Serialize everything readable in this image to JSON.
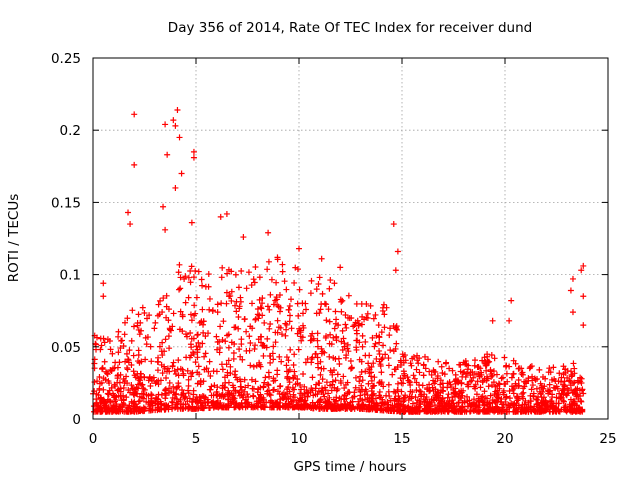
{
  "chart_data": {
    "type": "scatter",
    "title": "Day 356 of 2014, Rate Of TEC Index for receiver dund",
    "xlabel": "GPS time / hours",
    "ylabel": "ROTI / TECUs",
    "xlim": [
      0,
      25
    ],
    "ylim": [
      0,
      0.25
    ],
    "xticks": [
      0,
      5,
      10,
      15,
      20,
      25
    ],
    "xtick_labels": [
      "0",
      "5",
      "10",
      "15",
      "20",
      "25"
    ],
    "yticks": [
      0,
      0.05,
      0.1,
      0.15,
      0.2,
      0.25
    ],
    "ytick_labels": [
      "0",
      "0.05",
      "0.1",
      "0.15",
      "0.2",
      "0.25"
    ],
    "grid": true,
    "marker": "+",
    "marker_color": "#ff0000",
    "series": [
      {
        "name": "ROTI",
        "notable_points": [
          {
            "x": 0.5,
            "y": 0.094
          },
          {
            "x": 0.5,
            "y": 0.085
          },
          {
            "x": 1.7,
            "y": 0.143
          },
          {
            "x": 1.8,
            "y": 0.135
          },
          {
            "x": 2.0,
            "y": 0.211
          },
          {
            "x": 2.0,
            "y": 0.176
          },
          {
            "x": 3.5,
            "y": 0.204
          },
          {
            "x": 3.6,
            "y": 0.183
          },
          {
            "x": 3.4,
            "y": 0.147
          },
          {
            "x": 3.5,
            "y": 0.131
          },
          {
            "x": 3.9,
            "y": 0.207
          },
          {
            "x": 4.0,
            "y": 0.203
          },
          {
            "x": 4.1,
            "y": 0.214
          },
          {
            "x": 4.2,
            "y": 0.195
          },
          {
            "x": 4.3,
            "y": 0.17
          },
          {
            "x": 4.0,
            "y": 0.16
          },
          {
            "x": 4.9,
            "y": 0.185
          },
          {
            "x": 4.9,
            "y": 0.181
          },
          {
            "x": 4.8,
            "y": 0.136
          },
          {
            "x": 6.2,
            "y": 0.14
          },
          {
            "x": 6.5,
            "y": 0.142
          },
          {
            "x": 7.3,
            "y": 0.126
          },
          {
            "x": 8.5,
            "y": 0.129
          },
          {
            "x": 10.0,
            "y": 0.118
          },
          {
            "x": 11.1,
            "y": 0.111
          },
          {
            "x": 12.0,
            "y": 0.105
          },
          {
            "x": 14.6,
            "y": 0.135
          },
          {
            "x": 14.8,
            "y": 0.116
          },
          {
            "x": 14.7,
            "y": 0.103
          },
          {
            "x": 19.4,
            "y": 0.068
          },
          {
            "x": 20.3,
            "y": 0.082
          },
          {
            "x": 20.2,
            "y": 0.068
          },
          {
            "x": 23.8,
            "y": 0.106
          },
          {
            "x": 23.7,
            "y": 0.103
          },
          {
            "x": 23.3,
            "y": 0.097
          },
          {
            "x": 23.2,
            "y": 0.089
          },
          {
            "x": 23.8,
            "y": 0.085
          },
          {
            "x": 23.3,
            "y": 0.074
          },
          {
            "x": 23.8,
            "y": 0.065
          }
        ],
        "envelope_hours": [
          0,
          1,
          2,
          3,
          4,
          5,
          6,
          7,
          8,
          9,
          10,
          11,
          12,
          13,
          14,
          15,
          16,
          17,
          18,
          19,
          20,
          21,
          22,
          23,
          23.8
        ],
        "envelope_upper": [
          0.06,
          0.055,
          0.08,
          0.075,
          0.11,
          0.105,
          0.11,
          0.105,
          0.11,
          0.115,
          0.105,
          0.1,
          0.095,
          0.08,
          0.085,
          0.06,
          0.045,
          0.04,
          0.04,
          0.045,
          0.045,
          0.04,
          0.035,
          0.04,
          0.04
        ],
        "envelope_lower": [
          0.005,
          0.005,
          0.005,
          0.006,
          0.007,
          0.007,
          0.008,
          0.008,
          0.008,
          0.008,
          0.008,
          0.007,
          0.007,
          0.007,
          0.006,
          0.005,
          0.005,
          0.005,
          0.005,
          0.005,
          0.005,
          0.005,
          0.005,
          0.005,
          0.005
        ]
      }
    ]
  }
}
